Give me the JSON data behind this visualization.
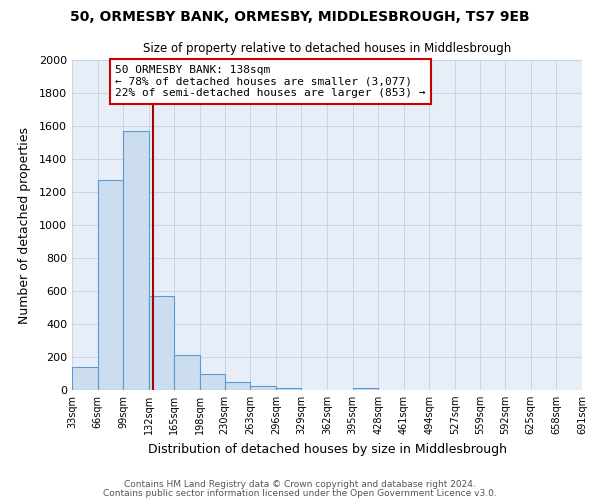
{
  "title1": "50, ORMESBY BANK, ORMESBY, MIDDLESBROUGH, TS7 9EB",
  "title2": "Size of property relative to detached houses in Middlesbrough",
  "xlabel": "Distribution of detached houses by size in Middlesbrough",
  "ylabel": "Number of detached properties",
  "bar_color": "#ccddf0",
  "bar_edge_color": "#5b9bd5",
  "bin_left_edges": [
    33,
    66,
    99,
    132,
    165,
    198,
    230,
    263,
    296,
    329,
    362,
    395,
    428,
    461,
    494,
    527,
    559,
    592,
    625,
    658
  ],
  "bin_width": 33,
  "bar_heights": [
    140,
    1270,
    1570,
    570,
    215,
    95,
    50,
    25,
    15,
    0,
    0,
    10,
    0,
    0,
    0,
    0,
    0,
    0,
    0,
    0
  ],
  "tick_positions": [
    33,
    66,
    99,
    132,
    165,
    198,
    230,
    263,
    296,
    329,
    362,
    395,
    428,
    461,
    494,
    527,
    559,
    592,
    625,
    658,
    691
  ],
  "tick_labels": [
    "33sqm",
    "66sqm",
    "99sqm",
    "132sqm",
    "165sqm",
    "198sqm",
    "230sqm",
    "263sqm",
    "296sqm",
    "329sqm",
    "362sqm",
    "395sqm",
    "428sqm",
    "461sqm",
    "494sqm",
    "527sqm",
    "559sqm",
    "592sqm",
    "625sqm",
    "658sqm",
    "691sqm"
  ],
  "ylim": [
    0,
    2000
  ],
  "yticks": [
    0,
    200,
    400,
    600,
    800,
    1000,
    1200,
    1400,
    1600,
    1800,
    2000
  ],
  "xlim_left": 33,
  "xlim_right": 691,
  "property_line_x": 138,
  "annotation_line1": "50 ORMESBY BANK: 138sqm",
  "annotation_line2": "← 78% of detached houses are smaller (3,077)",
  "annotation_line3": "22% of semi-detached houses are larger (853) →",
  "vline_color": "#aa0000",
  "grid_color": "#c8d4e8",
  "background_color": "#e8eef8",
  "footer1": "Contains HM Land Registry data © Crown copyright and database right 2024.",
  "footer2": "Contains public sector information licensed under the Open Government Licence v3.0."
}
